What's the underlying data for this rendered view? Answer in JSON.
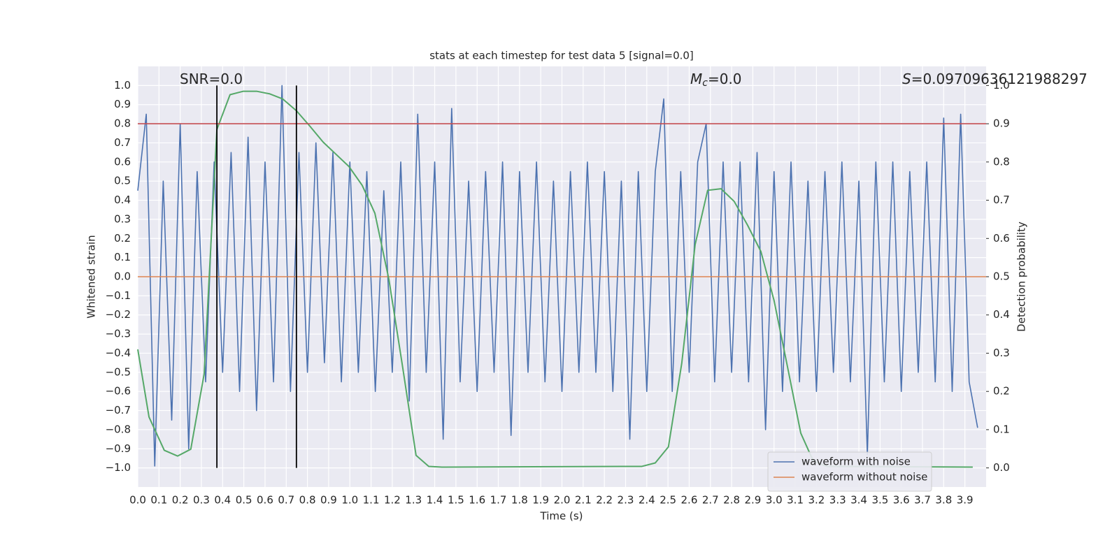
{
  "chart_data": {
    "type": "line",
    "title": "stats at each timestep for test data 5 [signal=0.0]",
    "xlabel": "Time (s)",
    "ylabel": "Whitened strain",
    "y2label": "Detection probability",
    "xlim": [
      0,
      4.0
    ],
    "ylim": [
      -1.1,
      1.1
    ],
    "y2lim": [
      -0.05,
      1.05
    ],
    "grid": true,
    "legend": "lower right",
    "xticks": [
      {
        "value": 0,
        "label": "0.0"
      },
      {
        "value": 0.1,
        "label": "0.1"
      },
      {
        "value": 0.2,
        "label": "0.2"
      },
      {
        "value": 0.3,
        "label": "0.3"
      },
      {
        "value": 0.4,
        "label": "0.4"
      },
      {
        "value": 0.5,
        "label": "0.5"
      },
      {
        "value": 0.6,
        "label": "0.6"
      },
      {
        "value": 0.7,
        "label": "0.7"
      },
      {
        "value": 0.8,
        "label": "0.8"
      },
      {
        "value": 0.9,
        "label": "0.9"
      },
      {
        "value": 1,
        "label": "1.0"
      },
      {
        "value": 1.1,
        "label": "1.1"
      },
      {
        "value": 1.2,
        "label": "1.2"
      },
      {
        "value": 1.3,
        "label": "1.3"
      },
      {
        "value": 1.4,
        "label": "1.4"
      },
      {
        "value": 1.5,
        "label": "1.5"
      },
      {
        "value": 1.6,
        "label": "1.6"
      },
      {
        "value": 1.7,
        "label": "1.7"
      },
      {
        "value": 1.8,
        "label": "1.8"
      },
      {
        "value": 1.9,
        "label": "1.9"
      },
      {
        "value": 2,
        "label": "2.0"
      },
      {
        "value": 2.1,
        "label": "2.1"
      },
      {
        "value": 2.2,
        "label": "2.2"
      },
      {
        "value": 2.3,
        "label": "2.3"
      },
      {
        "value": 2.4,
        "label": "2.4"
      },
      {
        "value": 2.5,
        "label": "2.5"
      },
      {
        "value": 2.6,
        "label": "2.6"
      },
      {
        "value": 2.7,
        "label": "2.7"
      },
      {
        "value": 2.8,
        "label": "2.8"
      },
      {
        "value": 2.9,
        "label": "2.9"
      },
      {
        "value": 3,
        "label": "3.0"
      },
      {
        "value": 3.1,
        "label": "3.1"
      },
      {
        "value": 3.2,
        "label": "3.2"
      },
      {
        "value": 3.3,
        "label": "3.3"
      },
      {
        "value": 3.4,
        "label": "3.4"
      },
      {
        "value": 3.5,
        "label": "3.5"
      },
      {
        "value": 3.6,
        "label": "3.6"
      },
      {
        "value": 3.7,
        "label": "3.7"
      },
      {
        "value": 3.8,
        "label": "3.8"
      },
      {
        "value": 3.9,
        "label": "3.9"
      }
    ],
    "yticks": [
      {
        "value": -1,
        "label": "−1.0"
      },
      {
        "value": -0.9,
        "label": "−0.9"
      },
      {
        "value": -0.8,
        "label": "−0.8"
      },
      {
        "value": -0.7,
        "label": "−0.7"
      },
      {
        "value": -0.6,
        "label": "−0.6"
      },
      {
        "value": -0.5,
        "label": "−0.5"
      },
      {
        "value": -0.4,
        "label": "−0.4"
      },
      {
        "value": -0.3,
        "label": "−0.3"
      },
      {
        "value": -0.2,
        "label": "−0.2"
      },
      {
        "value": -0.1,
        "label": "−0.1"
      },
      {
        "value": 0,
        "label": "0.0"
      },
      {
        "value": 0.1,
        "label": "0.1"
      },
      {
        "value": 0.2,
        "label": "0.2"
      },
      {
        "value": 0.3,
        "label": "0.3"
      },
      {
        "value": 0.4,
        "label": "0.4"
      },
      {
        "value": 0.5,
        "label": "0.5"
      },
      {
        "value": 0.6,
        "label": "0.6"
      },
      {
        "value": 0.7,
        "label": "0.7"
      },
      {
        "value": 0.8,
        "label": "0.8"
      },
      {
        "value": 0.9,
        "label": "0.9"
      },
      {
        "value": 1,
        "label": "1.0"
      }
    ],
    "y2ticks": [
      {
        "value": 0,
        "label": "0.0"
      },
      {
        "value": 0.1,
        "label": "0.1"
      },
      {
        "value": 0.2,
        "label": "0.2"
      },
      {
        "value": 0.3,
        "label": "0.3"
      },
      {
        "value": 0.4,
        "label": "0.4"
      },
      {
        "value": 0.5,
        "label": "0.5"
      },
      {
        "value": 0.6,
        "label": "0.6"
      },
      {
        "value": 0.7,
        "label": "0.7"
      },
      {
        "value": 0.8,
        "label": "0.8"
      },
      {
        "value": 0.9,
        "label": "0.9"
      },
      {
        "value": 1,
        "label": "1.0"
      }
    ],
    "series": [
      {
        "name": "waveform with noise",
        "color": "#4c72b0",
        "x": [
          0,
          0.04,
          0.08,
          0.12,
          0.16,
          0.2,
          0.24,
          0.28,
          0.32,
          0.36,
          0.4,
          0.44,
          0.48,
          0.52,
          0.56,
          0.6,
          0.64,
          0.68,
          0.72,
          0.76,
          0.8,
          0.84,
          0.88,
          0.92,
          0.96,
          1.0,
          1.04,
          1.08,
          1.12,
          1.16,
          1.2,
          1.24,
          1.28,
          1.32,
          1.36,
          1.4,
          1.44,
          1.48,
          1.52,
          1.56,
          1.6,
          1.64,
          1.68,
          1.72,
          1.76,
          1.8,
          1.84,
          1.88,
          1.92,
          1.96,
          2.0,
          2.04,
          2.08,
          2.12,
          2.16,
          2.2,
          2.24,
          2.28,
          2.32,
          2.36,
          2.4,
          2.44,
          2.48,
          2.52,
          2.56,
          2.6,
          2.64,
          2.68,
          2.72,
          2.76,
          2.8,
          2.84,
          2.88,
          2.92,
          2.96,
          3.0,
          3.04,
          3.08,
          3.12,
          3.16,
          3.2,
          3.24,
          3.28,
          3.32,
          3.36,
          3.4,
          3.44,
          3.48,
          3.52,
          3.56,
          3.6,
          3.64,
          3.68,
          3.72,
          3.76,
          3.8,
          3.84,
          3.88,
          3.92,
          3.96
        ],
        "values": [
          0.45,
          0.85,
          -0.99,
          0.5,
          -0.75,
          0.8,
          -0.9,
          0.55,
          -0.55,
          0.6,
          -0.5,
          0.65,
          -0.6,
          0.73,
          -0.7,
          0.6,
          -0.55,
          1.0,
          -0.6,
          0.65,
          -0.5,
          0.7,
          -0.45,
          0.65,
          -0.55,
          0.6,
          -0.5,
          0.55,
          -0.6,
          0.45,
          -0.5,
          0.6,
          -0.65,
          0.85,
          -0.5,
          0.6,
          -0.85,
          0.88,
          -0.55,
          0.5,
          -0.6,
          0.55,
          -0.5,
          0.6,
          -0.83,
          0.55,
          -0.5,
          0.6,
          -0.55,
          0.5,
          -0.6,
          0.55,
          -0.5,
          0.6,
          -0.5,
          0.55,
          -0.6,
          0.5,
          -0.85,
          0.55,
          -0.6,
          0.55,
          0.93,
          -0.6,
          0.55,
          -0.5,
          0.6,
          0.8,
          -0.55,
          0.6,
          -0.5,
          0.6,
          -0.55,
          0.65,
          -0.8,
          0.55,
          -0.6,
          0.6,
          -0.55,
          0.5,
          -0.6,
          0.55,
          -0.5,
          0.6,
          -0.55,
          0.5,
          -0.93,
          0.6,
          -0.55,
          0.6,
          -0.6,
          0.55,
          -0.5,
          0.6,
          -0.55,
          0.83,
          -0.6,
          0.85,
          -0.55,
          -0.79
        ]
      },
      {
        "name": "waveform without noise",
        "color": "#dd8452",
        "x": [
          0,
          4.0
        ],
        "values": [
          0,
          0
        ]
      },
      {
        "name": "detection probability",
        "color": "#55a868",
        "axis": "y2",
        "legend": false,
        "x": [
          0,
          0.053,
          0.125,
          0.188,
          0.25,
          0.313,
          0.373,
          0.435,
          0.498,
          0.56,
          0.623,
          0.683,
          0.748,
          0.811,
          0.874,
          0.933,
          0.996,
          1.058,
          1.118,
          1.184,
          1.246,
          1.312,
          1.372,
          1.434,
          2.377,
          2.44,
          2.502,
          2.565,
          2.628,
          2.687,
          2.75,
          2.812,
          2.875,
          2.938,
          3.0,
          3.06,
          3.126,
          3.185,
          3.248,
          3.937
        ],
        "values": [
          0.31,
          0.133,
          0.046,
          0.031,
          0.049,
          0.246,
          0.885,
          0.976,
          0.985,
          0.985,
          0.978,
          0.965,
          0.934,
          0.894,
          0.852,
          0.821,
          0.788,
          0.739,
          0.666,
          0.493,
          0.274,
          0.033,
          0.004,
          0.002,
          0.004,
          0.013,
          0.055,
          0.274,
          0.584,
          0.726,
          0.73,
          0.697,
          0.635,
          0.566,
          0.438,
          0.274,
          0.091,
          0.018,
          0.004,
          0.002
        ]
      }
    ],
    "hlines": [
      {
        "value": 0.8,
        "color": "#c44e52"
      }
    ],
    "vlines": [
      {
        "value": 0.373,
        "color": "#000000"
      },
      {
        "value": 0.748,
        "color": "#000000"
      }
    ],
    "annotations": [
      {
        "text": "SNR=0.0"
      },
      {
        "italic": "M",
        "sub": "c",
        "text": "=0.0"
      },
      {
        "italic": "S",
        "text": "=0.09709636121988297"
      }
    ]
  }
}
